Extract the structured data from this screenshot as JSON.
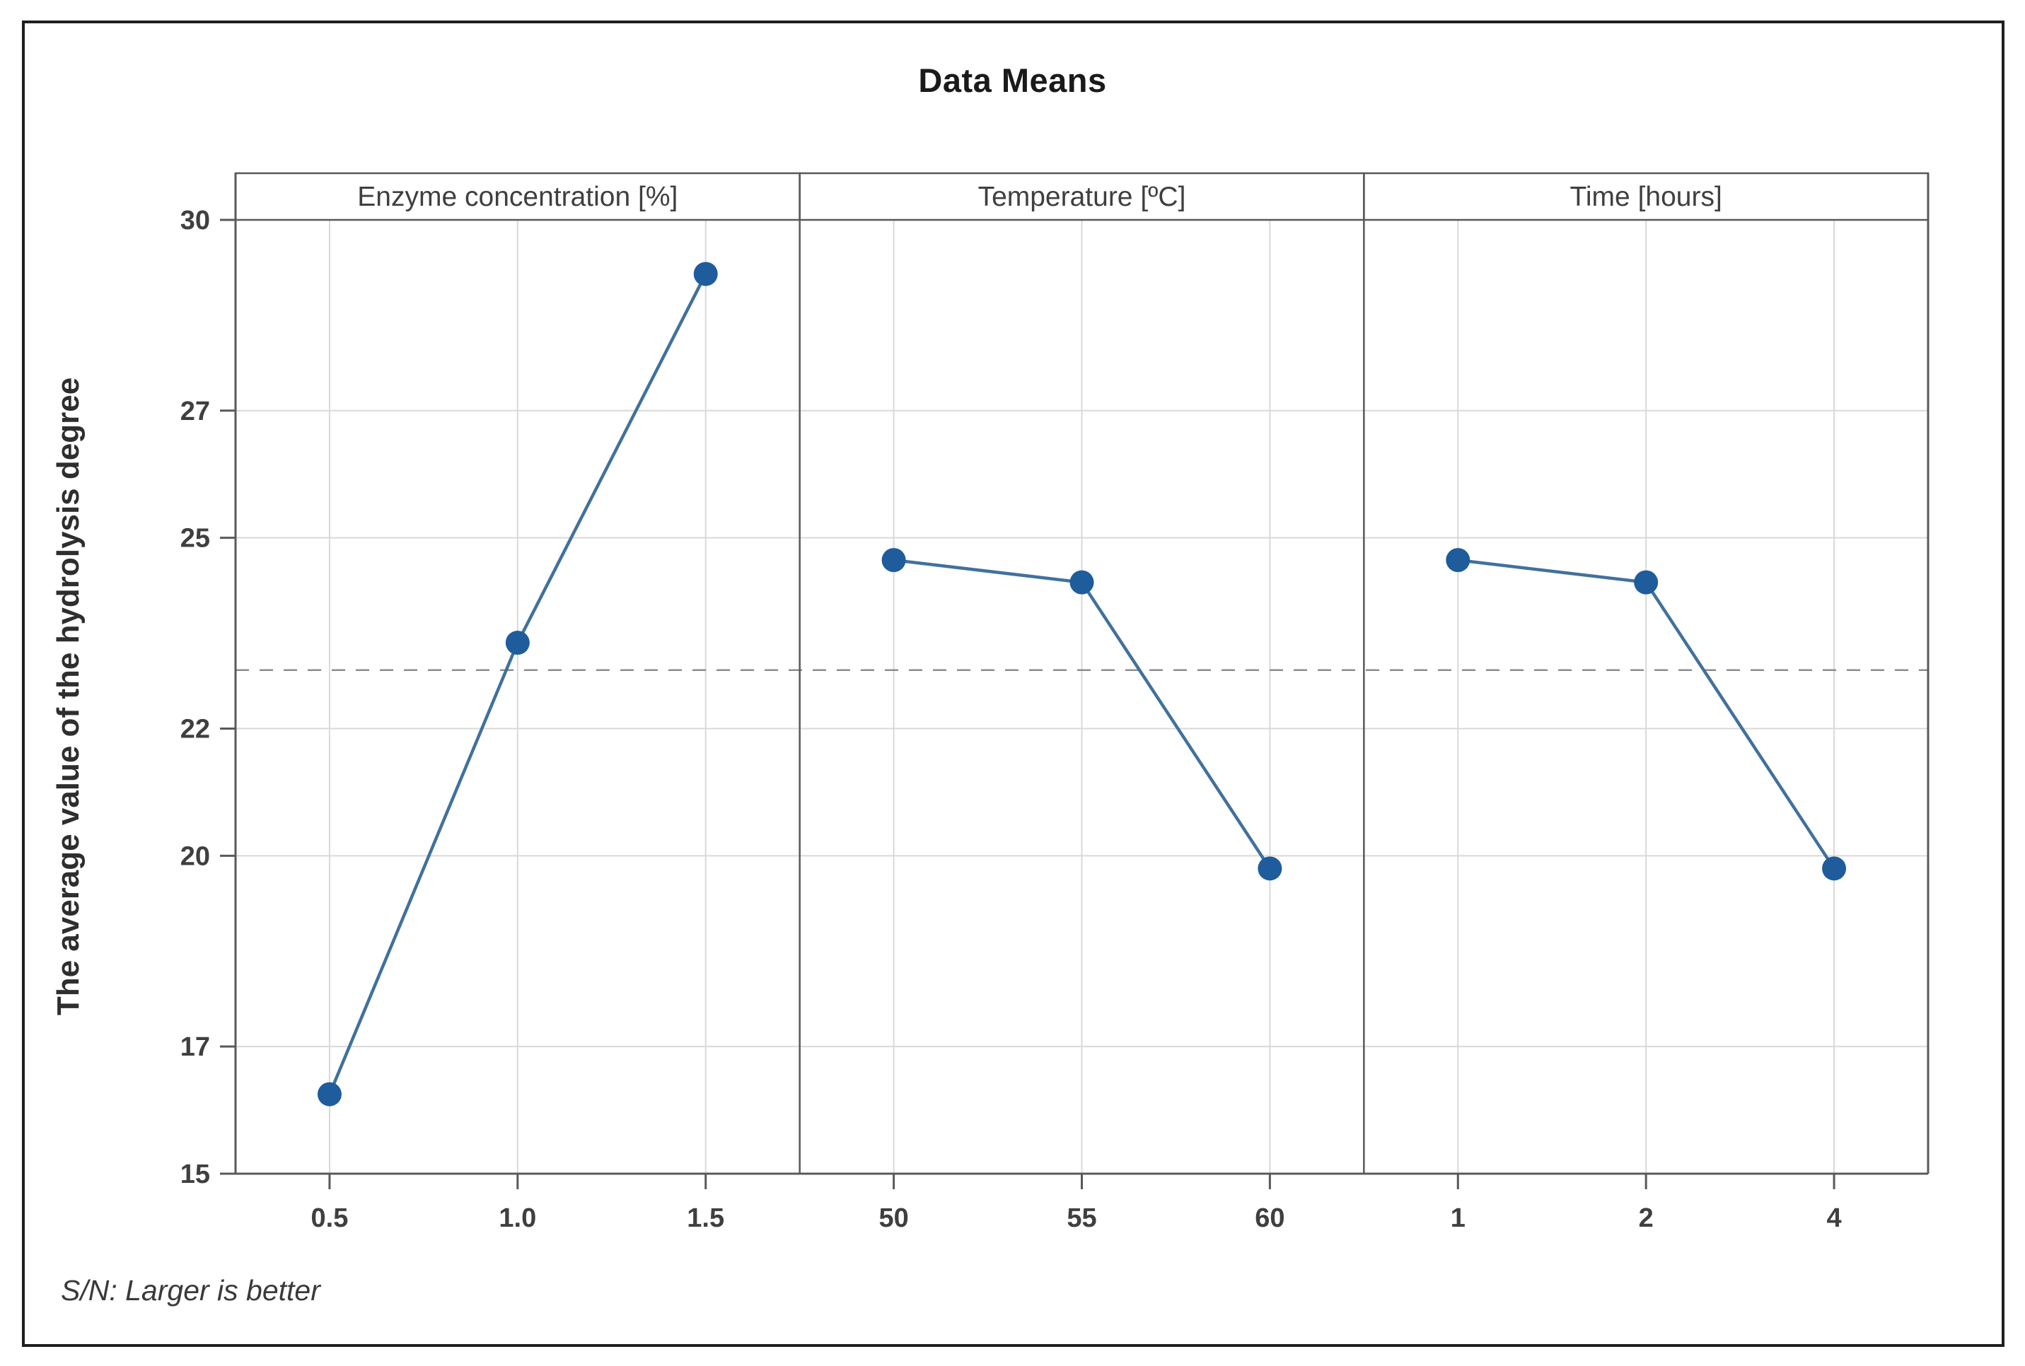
{
  "chart_data": {
    "type": "line",
    "title": "Data Means",
    "ylabel": "The average value of the hydrolysis degree",
    "footnote": "S/N: Larger is better",
    "ylim": [
      15,
      30
    ],
    "yticks": [
      15,
      17,
      20,
      22,
      25,
      27,
      30
    ],
    "grand_mean": 22.92,
    "grid": true,
    "panels": [
      {
        "label": "Enzyme concentration [%]",
        "categories": [
          "0.5",
          "1.0",
          "1.5"
        ],
        "values": [
          16.25,
          23.35,
          29.15
        ]
      },
      {
        "label": "Temperature [ºC]",
        "categories": [
          "50",
          "55",
          "60"
        ],
        "values": [
          24.65,
          24.3,
          19.8
        ]
      },
      {
        "label": "Time [hours]",
        "categories": [
          "1",
          "2",
          "4"
        ],
        "values": [
          24.65,
          24.3,
          19.8
        ]
      }
    ],
    "colors": {
      "marker": "#1e5c9c",
      "line": "#41719c",
      "gridline": "#d9d9d9",
      "mean_line": "#8c8c8c",
      "frame": "#595959",
      "tick_text": "#3f3f3f"
    }
  }
}
